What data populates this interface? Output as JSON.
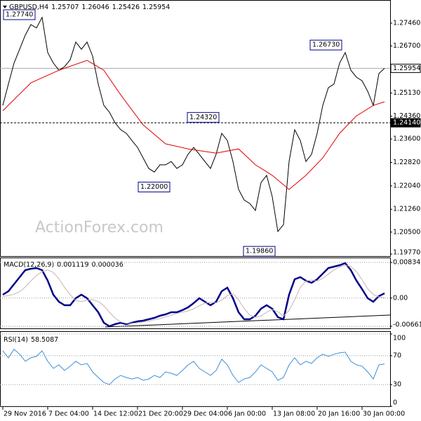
{
  "chart_data": [
    {
      "type": "line",
      "symbol": "GBPUSD,H4",
      "open": 1.25707,
      "high": 1.26046,
      "low": 1.25426,
      "watermark": "ActionForex.com",
      "xlim": [
        -0.5,
        69
      ],
      "ylim": [
        1.197,
        1.2823
      ],
      "yticks": [
        {
          "value": 1.2746,
          "label": "1.27460"
        },
        {
          "value": 1.267,
          "label": "1.26700"
        },
        {
          "value": 1.2513,
          "label": "1.25130"
        },
        {
          "value": 1.2436,
          "label": "1.24360"
        },
        {
          "value": 1.236,
          "label": "1.23600"
        },
        {
          "value": 1.2282,
          "label": "1.22820"
        },
        {
          "value": 1.2204,
          "label": "1.22040"
        },
        {
          "value": 1.2126,
          "label": "1.21260"
        },
        {
          "value": 1.205,
          "label": "1.20500"
        },
        {
          "value": 1.1977,
          "label": "1.19770"
        }
      ],
      "hlines": [
        {
          "value": 1.25954,
          "style": "solid"
        },
        {
          "value": 1.2414,
          "label": "1.24140",
          "style": "dashed"
        }
      ],
      "annotations": [
        {
          "value": 1.2774,
          "label": "1.27740"
        },
        {
          "value": 1.2673,
          "label": "1.26730"
        },
        {
          "value": 1.2432,
          "label": "1.24320"
        },
        {
          "value": 1.22,
          "label": "1.22000"
        },
        {
          "value": 1.1986,
          "label": "1.19860"
        }
      ],
      "series": [
        {
          "color": "#000000",
          "values": [
            1.2472,
            1.2543,
            1.2613,
            1.2659,
            1.2706,
            1.2741,
            1.273,
            1.2765,
            1.2648,
            1.2613,
            1.2589,
            1.2601,
            1.2624,
            1.2683,
            1.2659,
            1.2683,
            1.2636,
            1.2543,
            1.2472,
            1.2449,
            1.2414,
            1.2391,
            1.2379,
            1.2355,
            1.2332,
            1.2297,
            1.2262,
            1.225,
            1.2274,
            1.2274,
            1.2285,
            1.2262,
            1.2274,
            1.2309,
            1.2332,
            1.2309,
            1.2285,
            1.2262,
            1.2309,
            1.2379,
            1.2355,
            1.2285,
            1.2192,
            1.2157,
            1.2145,
            1.2122,
            1.2215,
            1.2239,
            1.2168,
            1.2052,
            1.2075,
            1.2285,
            1.2391,
            1.2355,
            1.2285,
            1.2309,
            1.2379,
            1.2472,
            1.2531,
            1.2543,
            1.2613,
            1.2648,
            1.2589,
            1.2566,
            1.2554,
            1.2519,
            1.2472,
            1.2578,
            1.25954
          ]
        },
        {
          "color": "#e00000",
          "x": [
            0,
            5,
            10,
            15,
            18,
            21,
            25,
            29,
            33,
            38,
            42,
            45,
            48,
            51,
            54,
            57,
            60,
            63,
            66,
            68
          ],
          "values": [
            1.2454,
            1.2547,
            1.2589,
            1.2622,
            1.2589,
            1.2507,
            1.2407,
            1.2344,
            1.2327,
            1.2313,
            1.2327,
            1.2274,
            1.2239,
            1.2192,
            1.2239,
            1.2297,
            1.2379,
            1.2437,
            1.2472,
            1.2484
          ]
        }
      ]
    },
    {
      "type": "line",
      "title": "MACD(12,26,9)",
      "xlim": [
        -0.5,
        69
      ],
      "ylim": [
        -0.0071,
        0.0095
      ],
      "yticks": [
        0.008341,
        {
          "value": 0,
          "label": "0.00"
        },
        -0.00661
      ],
      "grid": true,
      "series": [
        {
          "color": "#00008b",
          "values": [
            0.00079,
            0.00161,
            0.00325,
            0.0049,
            0.00654,
            0.00687,
            0.00703,
            0.00654,
            0.00407,
            0.00079,
            -0.00085,
            -0.00168,
            -0.00168,
            -3e-05,
            0.00079,
            -3e-05,
            -0.00168,
            -0.00332,
            -0.00578,
            -0.0066,
            -0.00611,
            -0.00578,
            -0.00611,
            -0.00578,
            -0.00545,
            -0.00529,
            -0.00496,
            -0.00463,
            -0.00414,
            -0.00381,
            -0.00332,
            -0.00332,
            -0.00283,
            -0.00217,
            -0.00118,
            -3e-05,
            -0.00085,
            -0.00168,
            -0.00085,
            0.00161,
            0.00243,
            -3e-05,
            -0.00332,
            -0.00496,
            -0.00496,
            -0.00414,
            -0.0025,
            -0.00168,
            -0.0025,
            -0.00447,
            -0.00496,
            0.00079,
            0.0044,
            0.0049,
            0.00407,
            0.00358,
            0.0044,
            0.00572,
            0.00703,
            0.00736,
            0.00769,
            0.00818,
            0.00654,
            0.00407,
            0.0021,
            -3e-05,
            -0.00085,
            0.00046,
            0.001119
          ]
        },
        {
          "color": "#c9b3b3",
          "values": [
            0.0004,
            0.0006,
            0.0009,
            0.0015,
            0.0026,
            0.004,
            0.0053,
            0.0062,
            0.0066,
            0.006,
            0.0045,
            0.0025,
            0.0008,
            -0.0006,
            -0.0008,
            -0.0005,
            -0.0004,
            -0.0008,
            -0.0018,
            -0.0033,
            -0.0047,
            -0.0056,
            -0.0059,
            -0.0059,
            -0.0058,
            -0.0056,
            -0.0054,
            -0.0051,
            -0.0048,
            -0.0044,
            -0.004,
            -0.0036,
            -0.0033,
            -0.003,
            -0.0025,
            -0.0018,
            -0.0012,
            -0.001,
            -0.0011,
            -0.0005,
            0.0006,
            0.001,
            -0.0004,
            -0.0025,
            -0.004,
            -0.0045,
            -0.0042,
            -0.0033,
            -0.0027,
            -0.0032,
            -0.0042,
            -0.0029,
            -0.0004,
            0.0025,
            0.004,
            0.0042,
            0.004,
            0.0046,
            0.0056,
            0.0066,
            0.0073,
            0.0077,
            0.0074,
            0.0062,
            0.0043,
            0.0022,
            0.0008,
            0.0003,
            3.6e-05
          ]
        }
      ]
    },
    {
      "type": "line",
      "title": "RSI(14)",
      "xlim": [
        -0.5,
        69
      ],
      "ylim": [
        0,
        100
      ],
      "yticks": [
        100,
        70,
        30,
        0
      ],
      "grid": true,
      "xticks": [
        {
          "value": 0,
          "label": "29 Nov 2016"
        },
        {
          "value": 8,
          "label": "7 Dec 04:00"
        },
        {
          "value": 16,
          "label": "14 Dec 12:00"
        },
        {
          "value": 24,
          "label": "21 Dec 20:00"
        },
        {
          "value": 32,
          "label": "29 Dec 04:00"
        },
        {
          "value": 40,
          "label": "6 Jan 00:00"
        },
        {
          "value": 48,
          "label": "13 Jan 08:00"
        },
        {
          "value": 56,
          "label": "20 Jan 16:00"
        },
        {
          "value": 64,
          "label": "30 Jan 00:00"
        }
      ],
      "series": [
        {
          "color": "#3d8fd6",
          "values": [
            76.8,
            67.1,
            78.8,
            72,
            62.2,
            67.1,
            69,
            76.8,
            62.2,
            52.4,
            57.3,
            49.5,
            55.4,
            62.2,
            57.3,
            59.3,
            47.6,
            39.8,
            33,
            30,
            37.8,
            42.7,
            39.8,
            37.8,
            39.8,
            35.9,
            37.8,
            42.7,
            39.8,
            47.6,
            45.6,
            42.7,
            49.5,
            57.3,
            62.2,
            52.4,
            47.6,
            42.7,
            49.5,
            65.1,
            57.3,
            42.7,
            33,
            37.8,
            39.8,
            47.6,
            57.3,
            52.4,
            47.6,
            35.9,
            39.8,
            57.3,
            67.1,
            57.3,
            62.2,
            59.3,
            67.1,
            72,
            69,
            72,
            73.9,
            74.9,
            62.2,
            57.3,
            55.4,
            47.6,
            37.8,
            57.3,
            58.5087
          ]
        }
      ]
    }
  ]
}
